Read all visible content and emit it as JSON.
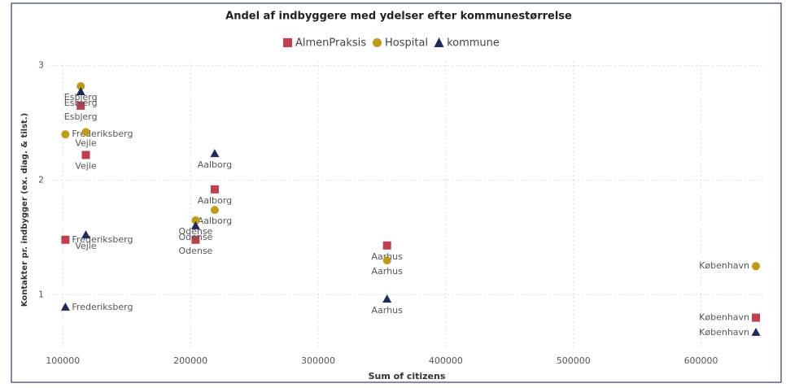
{
  "chart_data": {
    "type": "scatter",
    "title": "Andel af indbyggere med ydelser efter kommunestørrelse",
    "x_label": "Sum of citizens",
    "y_label": "Kontakter pr. indbygger (ex. diag. & tilst.)",
    "xlim": [
      89000,
      650000
    ],
    "xticks": [
      100000,
      200000,
      300000,
      400000,
      500000,
      600000
    ],
    "ylim": [
      0.52,
      3.04
    ],
    "yticks": [
      1,
      2,
      3
    ],
    "grid": true,
    "legend": "top",
    "series": [
      {
        "name": "AlmenPraksis",
        "color": "#c0404f",
        "marker": "square",
        "labels": [
          "Esbjerg",
          "Frederiksberg",
          "Vejle",
          "Aalborg",
          "Odense",
          "Aarhus",
          "København"
        ],
        "x": [
          114000,
          102000,
          118000,
          219000,
          204000,
          354000,
          643000
        ],
        "values": [
          2.65,
          1.48,
          2.22,
          1.92,
          1.48,
          1.43,
          0.8
        ]
      },
      {
        "name": "Hospital",
        "color": "#c29a1a",
        "marker": "circle",
        "labels": [
          "Esbjerg",
          "Frederiksberg",
          "Vejle",
          "Aalborg",
          "Odense",
          "Aarhus",
          "København"
        ],
        "x": [
          114000,
          102000,
          118000,
          219000,
          204000,
          354000,
          643000
        ],
        "values": [
          2.82,
          2.4,
          2.42,
          1.74,
          1.65,
          1.3,
          1.25
        ]
      },
      {
        "name": "kommune",
        "color": "#1f2a5c",
        "marker": "triangle",
        "labels": [
          "Esbjerg",
          "Frederiksberg",
          "Vejle",
          "Aalborg",
          "Odense",
          "Aarhus",
          "København"
        ],
        "x": [
          114000,
          102000,
          118000,
          219000,
          204000,
          354000,
          643000
        ],
        "values": [
          2.77,
          0.89,
          1.52,
          2.23,
          1.6,
          0.96,
          0.67
        ]
      }
    ]
  }
}
